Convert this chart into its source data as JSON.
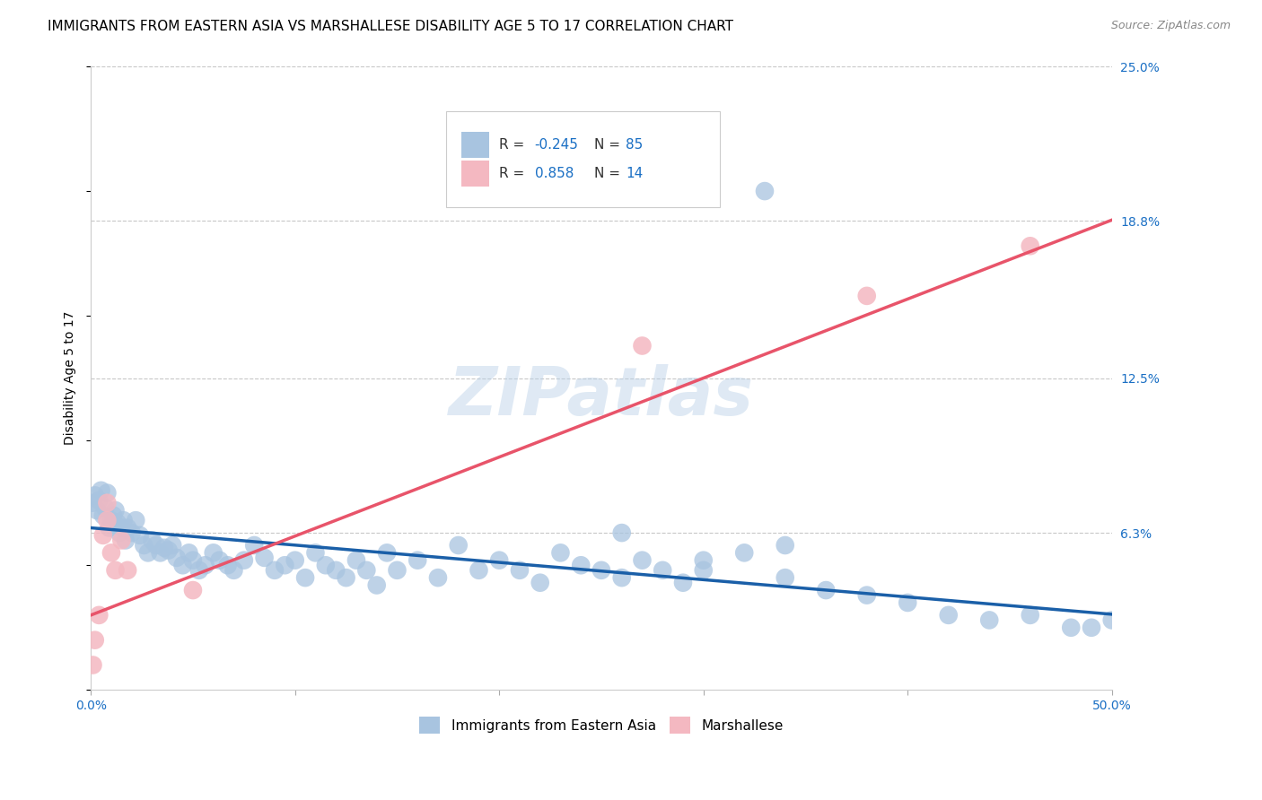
{
  "title": "IMMIGRANTS FROM EASTERN ASIA VS MARSHALLESE DISABILITY AGE 5 TO 17 CORRELATION CHART",
  "source": "Source: ZipAtlas.com",
  "ylabel": "Disability Age 5 to 17",
  "xlim": [
    0.0,
    0.5
  ],
  "ylim": [
    0.0,
    0.25
  ],
  "xtick_vals": [
    0.0,
    0.1,
    0.2,
    0.3,
    0.4,
    0.5
  ],
  "xticklabels": [
    "0.0%",
    "",
    "",
    "",
    "",
    "50.0%"
  ],
  "ytick_labels_right": [
    "6.3%",
    "12.5%",
    "18.8%",
    "25.0%"
  ],
  "ytick_vals_right": [
    0.063,
    0.125,
    0.188,
    0.25
  ],
  "blue_R": "-0.245",
  "blue_N": "85",
  "pink_R": "0.858",
  "pink_N": "14",
  "blue_color": "#a8c4e0",
  "blue_line_color": "#1a5fa8",
  "pink_color": "#f4b8c1",
  "pink_line_color": "#e8546a",
  "blue_label": "Immigrants from Eastern Asia",
  "pink_label": "Marshallese",
  "watermark": "ZIPatlas",
  "background_color": "#ffffff",
  "grid_color": "#c8c8c8",
  "blue_x": [
    0.001,
    0.002,
    0.003,
    0.004,
    0.005,
    0.006,
    0.007,
    0.008,
    0.009,
    0.01,
    0.011,
    0.012,
    0.013,
    0.014,
    0.015,
    0.016,
    0.017,
    0.018,
    0.02,
    0.022,
    0.024,
    0.026,
    0.028,
    0.03,
    0.032,
    0.034,
    0.036,
    0.038,
    0.04,
    0.042,
    0.045,
    0.048,
    0.05,
    0.053,
    0.056,
    0.06,
    0.063,
    0.067,
    0.07,
    0.075,
    0.08,
    0.085,
    0.09,
    0.095,
    0.1,
    0.105,
    0.11,
    0.115,
    0.12,
    0.125,
    0.13,
    0.135,
    0.14,
    0.145,
    0.15,
    0.16,
    0.17,
    0.18,
    0.19,
    0.2,
    0.21,
    0.22,
    0.23,
    0.24,
    0.25,
    0.26,
    0.27,
    0.28,
    0.29,
    0.3,
    0.32,
    0.34,
    0.36,
    0.38,
    0.4,
    0.42,
    0.44,
    0.46,
    0.48,
    0.49,
    0.5,
    0.505,
    0.34,
    0.26,
    0.3
  ],
  "blue_y": [
    0.075,
    0.078,
    0.072,
    0.076,
    0.08,
    0.07,
    0.073,
    0.079,
    0.065,
    0.068,
    0.07,
    0.072,
    0.067,
    0.063,
    0.065,
    0.068,
    0.06,
    0.065,
    0.063,
    0.068,
    0.062,
    0.058,
    0.055,
    0.06,
    0.058,
    0.055,
    0.057,
    0.056,
    0.058,
    0.053,
    0.05,
    0.055,
    0.052,
    0.048,
    0.05,
    0.055,
    0.052,
    0.05,
    0.048,
    0.052,
    0.058,
    0.053,
    0.048,
    0.05,
    0.052,
    0.045,
    0.055,
    0.05,
    0.048,
    0.045,
    0.052,
    0.048,
    0.042,
    0.055,
    0.048,
    0.052,
    0.045,
    0.058,
    0.048,
    0.052,
    0.048,
    0.043,
    0.055,
    0.05,
    0.048,
    0.045,
    0.052,
    0.048,
    0.043,
    0.052,
    0.055,
    0.045,
    0.04,
    0.038,
    0.035,
    0.03,
    0.028,
    0.03,
    0.025,
    0.025,
    0.028,
    0.032,
    0.058,
    0.063,
    0.048
  ],
  "blue_outlier_x": [
    0.33
  ],
  "blue_outlier_y": [
    0.2
  ],
  "pink_x": [
    0.001,
    0.002,
    0.004,
    0.006,
    0.008,
    0.01,
    0.012,
    0.015,
    0.018,
    0.05,
    0.27,
    0.38,
    0.46,
    0.008
  ],
  "pink_y": [
    0.01,
    0.02,
    0.03,
    0.062,
    0.068,
    0.055,
    0.048,
    0.06,
    0.048,
    0.04,
    0.138,
    0.158,
    0.178,
    0.075
  ],
  "title_fontsize": 11,
  "axis_label_fontsize": 10,
  "tick_fontsize": 10,
  "legend_fontsize": 11
}
